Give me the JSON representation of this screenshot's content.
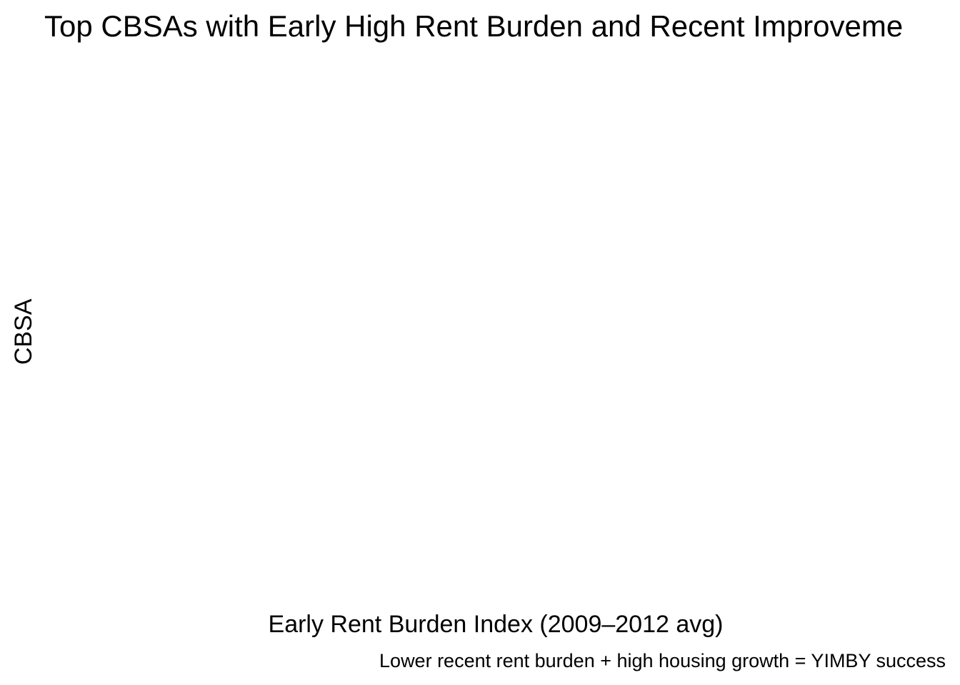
{
  "chart_data": {
    "type": "bar",
    "title": "Top CBSAs with Early High Rent Burden and Recent Improveme",
    "xlabel": "Early Rent Burden Index (2009–2012 avg)",
    "ylabel": "CBSA",
    "caption": "Lower recent rent burden + high housing growth = YIMBY success",
    "categories": [],
    "values": [],
    "grid": false,
    "legend": "none"
  }
}
